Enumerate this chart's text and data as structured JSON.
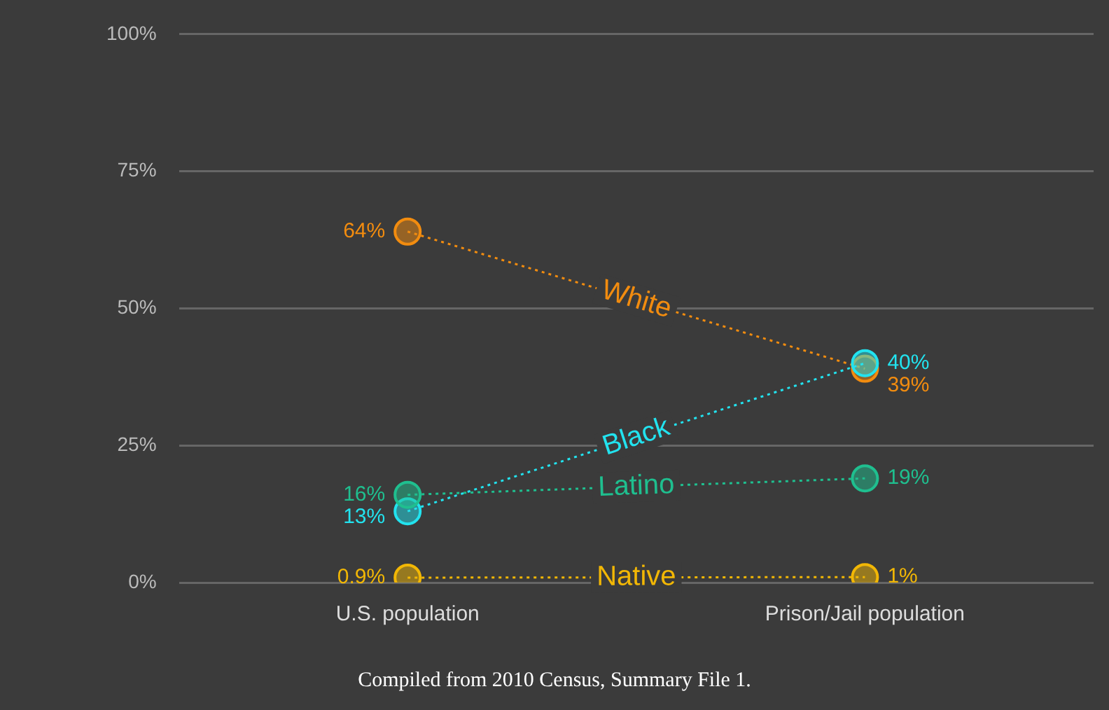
{
  "chart_data": {
    "type": "line",
    "categories": [
      "U.S. population",
      "Prison/Jail population"
    ],
    "series": [
      {
        "name": "White",
        "color": "#f28c0f",
        "values": [
          64,
          39
        ],
        "value_labels": [
          "64%",
          "39%"
        ]
      },
      {
        "name": "Black",
        "color": "#22e3ef",
        "values": [
          13,
          40
        ],
        "value_labels": [
          "13%",
          "40%"
        ]
      },
      {
        "name": "Latino",
        "color": "#1fbf8f",
        "values": [
          16,
          19
        ],
        "value_labels": [
          "16%",
          "19%"
        ]
      },
      {
        "name": "Native",
        "color": "#f2b705",
        "values": [
          0.9,
          1
        ],
        "value_labels": [
          "0.9%",
          "1%"
        ]
      }
    ],
    "ylim": [
      0,
      100
    ],
    "yticks": [
      {
        "value": 0,
        "label": "0%"
      },
      {
        "value": 25,
        "label": "25%"
      },
      {
        "value": 50,
        "label": "50%"
      },
      {
        "value": 75,
        "label": "75%"
      },
      {
        "value": 100,
        "label": "100%"
      }
    ],
    "grid": "y",
    "legend": false,
    "marker": "circle",
    "line_style": "dotted",
    "annotations": [
      "Compiled from 2010 Census, Summary File 1."
    ]
  }
}
